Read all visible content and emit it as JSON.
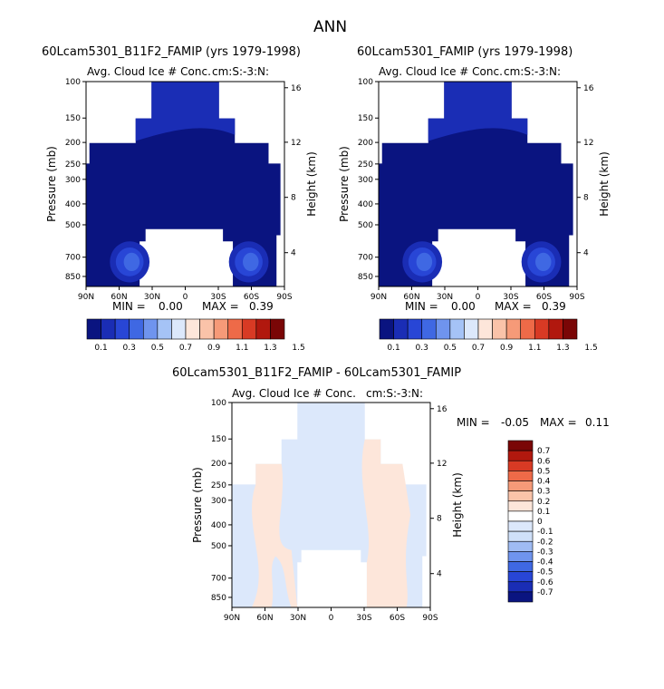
{
  "page": {
    "title": "ANN",
    "colors": {
      "seq": [
        "#0a1480",
        "#1a2db5",
        "#2846d6",
        "#3f68e3",
        "#6f94ee",
        "#a5c3f6",
        "#dce8fb",
        "#fde6da",
        "#fac3a9",
        "#f69a78",
        "#ee6a48",
        "#d83a24",
        "#b1180e",
        "#7a0606"
      ],
      "diff": [
        "#0a1480",
        "#1a2db5",
        "#2846d6",
        "#3f68e3",
        "#6f94ee",
        "#9fbbf3",
        "#cfe0f9",
        "#dce8fb",
        "#fde6da",
        "#fac3a9",
        "#f69a78",
        "#ee6a48",
        "#d83a24",
        "#b1180e",
        "#7a0606"
      ]
    }
  },
  "chart_data": [
    {
      "type": "heatmap",
      "title": "60Lcam5301_B11F2_FAMIP (yrs 1979-1998)",
      "subtitle_left": "Avg. Cloud Ice # Conc.",
      "subtitle_right": "cm:S:-3:N:",
      "ylabel": "Pressure (mb)",
      "y2label": "Height (km)",
      "xticks": [
        "90N",
        "60N",
        "30N",
        "0",
        "30S",
        "60S",
        "90S"
      ],
      "yticks": [
        "100",
        "150",
        "200",
        "250",
        "300",
        "400",
        "500",
        "700",
        "850"
      ],
      "y2ticks": [
        "16",
        "12",
        "8",
        "4"
      ],
      "min_label": "MIN =",
      "min_value": "0.00",
      "max_label": "MAX =",
      "max_value": "0.39",
      "legend_labels": [
        "0.1",
        "0.3",
        "0.5",
        "0.7",
        "0.9",
        "1.1",
        "1.3",
        "1.5"
      ],
      "ylim": [
        1000,
        100
      ],
      "xlim": [
        "90N",
        "90S"
      ]
    },
    {
      "type": "heatmap",
      "title": "60Lcam5301_FAMIP (yrs 1979-1998)",
      "subtitle_left": "Avg. Cloud Ice # Conc.",
      "subtitle_right": "cm:S:-3:N:",
      "ylabel": "Pressure (mb)",
      "y2label": "Height (km)",
      "xticks": [
        "90N",
        "60N",
        "30N",
        "0",
        "30S",
        "60S",
        "90S"
      ],
      "yticks": [
        "100",
        "150",
        "200",
        "250",
        "300",
        "400",
        "500",
        "700",
        "850"
      ],
      "y2ticks": [
        "16",
        "12",
        "8",
        "4"
      ],
      "min_label": "MIN =",
      "min_value": "0.00",
      "max_label": "MAX =",
      "max_value": "0.39",
      "legend_labels": [
        "0.1",
        "0.3",
        "0.5",
        "0.7",
        "0.9",
        "1.1",
        "1.3",
        "1.5"
      ],
      "ylim": [
        1000,
        100
      ],
      "xlim": [
        "90N",
        "90S"
      ]
    },
    {
      "type": "heatmap",
      "title": "60Lcam5301_B11F2_FAMIP - 60Lcam5301_FAMIP",
      "subtitle_left": "Avg. Cloud Ice # Conc.",
      "subtitle_right": "cm:S:-3:N:",
      "ylabel": "Pressure (mb)",
      "y2label": "Height (km)",
      "xticks": [
        "90N",
        "60N",
        "30N",
        "0",
        "30S",
        "60S",
        "90S"
      ],
      "yticks": [
        "100",
        "150",
        "200",
        "250",
        "300",
        "400",
        "500",
        "700",
        "850"
      ],
      "y2ticks": [
        "16",
        "12",
        "8",
        "4"
      ],
      "min_label": "MIN =",
      "min_value": "-0.05",
      "max_label": "MAX =",
      "max_value": "0.11",
      "legend_labels": [
        "0.7",
        "0.6",
        "0.5",
        "0.4",
        "0.3",
        "0.2",
        "0.1",
        "0",
        "-0.1",
        "-0.2",
        "-0.3",
        "-0.4",
        "-0.5",
        "-0.6",
        "-0.7"
      ],
      "ylim": [
        1000,
        100
      ],
      "xlim": [
        "90N",
        "90S"
      ]
    }
  ]
}
